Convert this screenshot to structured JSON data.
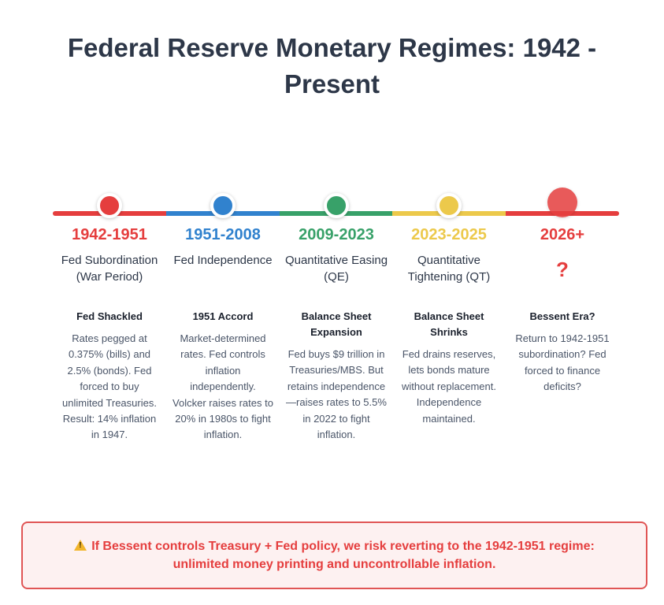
{
  "title": "Federal Reserve Monetary Regimes: 1942 - Present",
  "eras": [
    {
      "years": "1942-1951",
      "label": "Fed Subordination (War Period)",
      "heading": "Fed Shackled",
      "description": "Rates pegged at 0.375% (bills) and 2.5% (bonds). Fed forced to buy unlimited Treasuries. Result: 14% inflation in 1947.",
      "color": "#e53e3e"
    },
    {
      "years": "1951-2008",
      "label": "Fed Independence",
      "heading": "1951 Accord",
      "description": "Market-determined rates. Fed controls inflation independently. Volcker raises rates to 20% in 1980s to fight inflation.",
      "color": "#3182ce"
    },
    {
      "years": "2009-2023",
      "label": "Quantitative Easing (QE)",
      "heading": "Balance Sheet Expansion",
      "description": "Fed buys $9 trillion in Treasuries/MBS. But retains independence—raises rates to 5.5% in 2022 to fight inflation.",
      "color": "#38a169"
    },
    {
      "years": "2023-2025",
      "label": "Quantitative Tightening (QT)",
      "heading": "Balance Sheet Shrinks",
      "description": "Fed drains reserves, lets bonds mature without replacement. Independence maintained.",
      "color": "#ecc94b"
    },
    {
      "years": "2026+",
      "label": "?",
      "heading": "Bessent Era?",
      "description": "Return to 1942-1951 subordination? Fed forced to finance deficits?",
      "color": "#e53e3e"
    }
  ],
  "warning": {
    "icon": "warning-icon",
    "text": "If Bessent controls Treasury + Fed policy, we risk reverting to the 1942-1951 regime: unlimited money printing and uncontrollable inflation."
  }
}
